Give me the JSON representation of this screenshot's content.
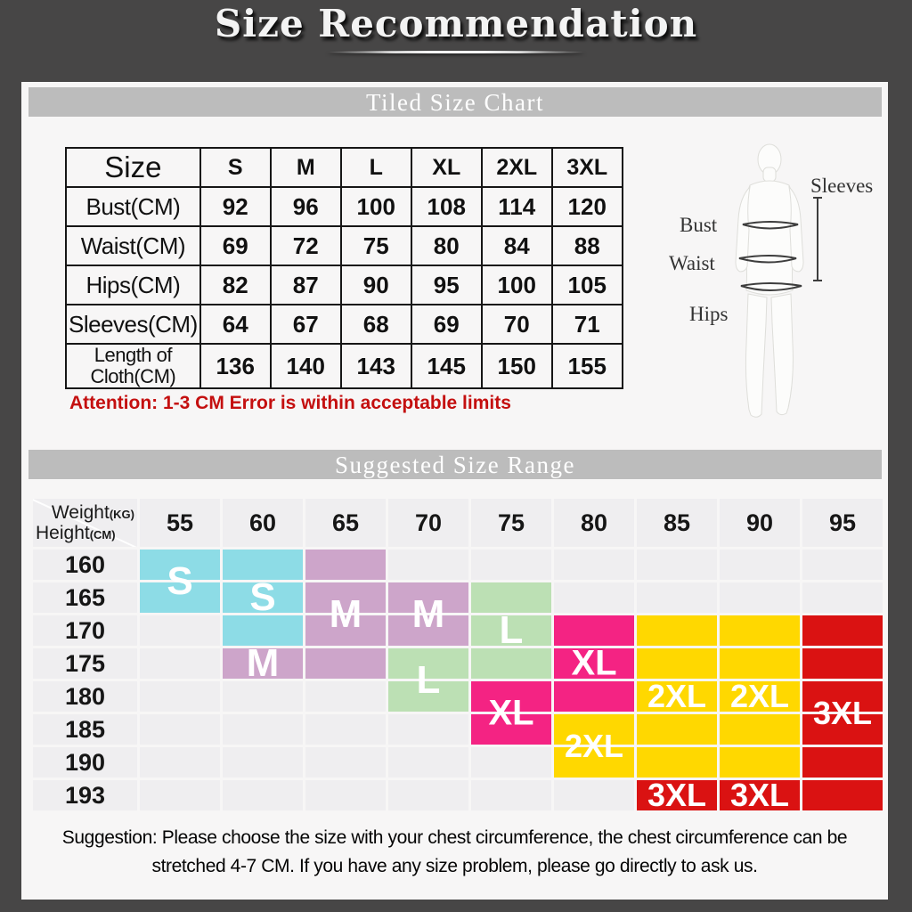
{
  "page": {
    "title": "Size Recommendation"
  },
  "tiled_section": {
    "header": "Tiled Size Chart",
    "attention": "Attention: 1-3 CM Error is within acceptable limits"
  },
  "figure": {
    "sleeves": "Sleeves",
    "bust": "Bust",
    "waist": "Waist",
    "hips": "Hips"
  },
  "range_section": {
    "header": "Suggested Size Range",
    "corner_weight": "Weight",
    "corner_weight_unit": "(KG)",
    "corner_height": "Height",
    "corner_height_unit": "(CM)",
    "size_labels": [
      {
        "text": "S",
        "col": 0,
        "row": 0,
        "straddle": true
      },
      {
        "text": "S",
        "col": 1,
        "row": 1,
        "straddle": false
      },
      {
        "text": "M",
        "col": 2,
        "row": 1,
        "straddle": true
      },
      {
        "text": "M",
        "col": 3,
        "row": 1,
        "straddle": true
      },
      {
        "text": "L",
        "col": 4,
        "row": 2,
        "straddle": false
      },
      {
        "text": "M",
        "col": 1,
        "row": 3,
        "straddle": false
      },
      {
        "text": "L",
        "col": 3,
        "row": 3,
        "straddle": true
      },
      {
        "text": "XL",
        "col": 5,
        "row": 3,
        "straddle": false
      },
      {
        "text": "XL",
        "col": 4,
        "row": 4,
        "straddle": true
      },
      {
        "text": "2XL",
        "col": 6,
        "row": 4,
        "straddle": false
      },
      {
        "text": "2XL",
        "col": 7,
        "row": 4,
        "straddle": false
      },
      {
        "text": "3XL",
        "col": 8,
        "row": 4,
        "straddle": true
      },
      {
        "text": "2XL",
        "col": 5,
        "row": 5,
        "straddle": true
      },
      {
        "text": "3XL",
        "col": 6,
        "row": 7,
        "straddle": false
      },
      {
        "text": "3XL",
        "col": 7,
        "row": 7,
        "straddle": false
      }
    ]
  },
  "suggestion": {
    "line1": "Suggestion: Please choose the size with your chest circumference, the chest circumference can be",
    "line2": "stretched 4-7 CM. If you have any size problem, please go directly to ask us."
  },
  "colors": {
    "page_bg": "#474646",
    "panel_bg": "#f7f6f6",
    "section_bar_bg": "#bcbcbc",
    "attention_red": "#c40f0f",
    "cell_empty": "#efeef0",
    "size_S": "#8ddce6",
    "size_M": "#cda5ca",
    "size_L": "#bce0b4",
    "size_XL": "#f42383",
    "size_2XL": "#ffd800",
    "size_3XL": "#da1212"
  },
  "chart_data": [
    {
      "type": "table",
      "title": "Tiled Size Chart",
      "columns": [
        "Size",
        "S",
        "M",
        "L",
        "XL",
        "2XL",
        "3XL"
      ],
      "rows": [
        {
          "label": "Bust(CM)",
          "values": [
            92,
            96,
            100,
            108,
            114,
            120
          ]
        },
        {
          "label": "Waist(CM)",
          "values": [
            69,
            72,
            75,
            80,
            84,
            88
          ]
        },
        {
          "label": "Hips(CM)",
          "values": [
            82,
            87,
            90,
            95,
            100,
            105
          ]
        },
        {
          "label": "Sleeves(CM)",
          "values": [
            64,
            67,
            68,
            69,
            70,
            71
          ]
        },
        {
          "label": "Length of Cloth(CM)",
          "values": [
            136,
            140,
            143,
            145,
            150,
            155
          ]
        }
      ],
      "note": "Attention: 1-3 CM Error is within acceptable limits"
    },
    {
      "type": "heatmap",
      "title": "Suggested Size Range",
      "x_axis": "Weight(KG)",
      "y_axis": "Height(CM)",
      "x": [
        55,
        60,
        65,
        70,
        75,
        80,
        85,
        90,
        95
      ],
      "y": [
        160,
        165,
        170,
        175,
        180,
        185,
        190,
        193
      ],
      "cells": [
        [
          "S",
          "S",
          "M",
          "",
          "",
          "",
          "",
          "",
          ""
        ],
        [
          "S",
          "S",
          "M",
          "M",
          "L",
          "",
          "",
          "",
          ""
        ],
        [
          "",
          "S",
          "M",
          "M",
          "L",
          "XL",
          "2XL",
          "2XL",
          "3XL"
        ],
        [
          "",
          "M",
          "M",
          "L",
          "L",
          "XL",
          "2XL",
          "2XL",
          "3XL"
        ],
        [
          "",
          "",
          "",
          "L",
          "XL",
          "XL",
          "2XL",
          "2XL",
          "3XL"
        ],
        [
          "",
          "",
          "",
          "",
          "XL",
          "2XL",
          "2XL",
          "2XL",
          "3XL"
        ],
        [
          "",
          "",
          "",
          "",
          "",
          "2XL",
          "2XL",
          "2XL",
          "3XL"
        ],
        [
          "",
          "",
          "",
          "",
          "",
          "",
          "3XL",
          "3XL",
          "3XL"
        ]
      ],
      "legend": [
        "S",
        "M",
        "L",
        "XL",
        "2XL",
        "3XL"
      ]
    }
  ]
}
